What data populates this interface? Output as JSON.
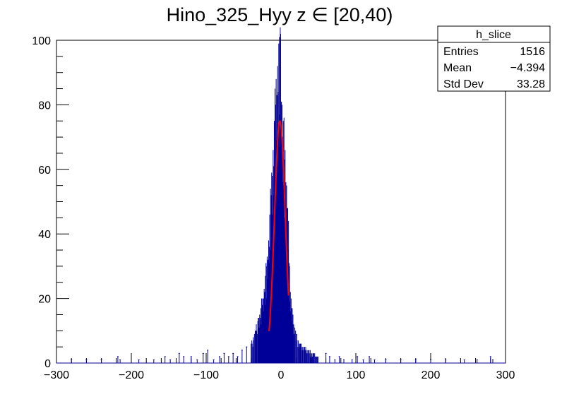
{
  "chart_data": {
    "type": "histogram",
    "title": "Hino_325_Hyy z  ∈ [20,40)",
    "xlabel": "",
    "ylabel": "",
    "xlim": [
      -300,
      300
    ],
    "ylim": [
      0,
      100
    ],
    "x_ticks": [
      "−300",
      "−200",
      "−100",
      "0",
      "100",
      "200",
      "300"
    ],
    "y_ticks": [
      "0",
      "20",
      "40",
      "60",
      "80",
      "100"
    ],
    "x_tick_values": [
      -300,
      -200,
      -100,
      0,
      100,
      200,
      300
    ],
    "y_tick_values": [
      0,
      20,
      40,
      60,
      80,
      100
    ],
    "histogram_color": "#000099",
    "fit_color": "#ff0000",
    "fit": {
      "function": "gaus",
      "constant": 75,
      "mean": -1.5,
      "sigma": 7.2,
      "range": [
        -16,
        10
      ]
    },
    "peak_points": [
      [
        -40,
        6
      ],
      [
        -36,
        8
      ],
      [
        -32,
        11
      ],
      [
        -28,
        14
      ],
      [
        -24,
        18
      ],
      [
        -20,
        25
      ],
      [
        -17,
        32
      ],
      [
        -14,
        44
      ],
      [
        -11,
        57
      ],
      [
        -8,
        70
      ],
      [
        -6,
        78
      ],
      [
        -4,
        84
      ],
      [
        -3,
        87
      ],
      [
        -2,
        83
      ],
      [
        -1,
        96
      ],
      [
        0,
        80
      ],
      [
        1,
        75
      ],
      [
        2,
        70
      ],
      [
        4,
        62
      ],
      [
        6,
        55
      ],
      [
        8,
        48
      ],
      [
        10,
        36
      ],
      [
        12,
        22
      ],
      [
        14,
        17
      ],
      [
        16,
        12
      ],
      [
        20,
        9
      ],
      [
        24,
        6
      ],
      [
        28,
        5
      ],
      [
        34,
        4
      ],
      [
        40,
        3
      ],
      [
        50,
        2
      ]
    ],
    "tail_bins": [
      [
        -280,
        1
      ],
      [
        -260,
        1
      ],
      [
        -240,
        1
      ],
      [
        -218,
        2
      ],
      [
        -215,
        1
      ],
      [
        -190,
        1
      ],
      [
        -170,
        1
      ],
      [
        -155,
        2
      ],
      [
        -148,
        1
      ],
      [
        -136,
        3
      ],
      [
        -130,
        2
      ],
      [
        -120,
        2
      ],
      [
        -112,
        1
      ],
      [
        -104,
        3
      ],
      [
        -98,
        4
      ],
      [
        -90,
        1
      ],
      [
        -82,
        2
      ],
      [
        -76,
        3
      ],
      [
        -70,
        2
      ],
      [
        -64,
        3
      ],
      [
        -58,
        2
      ],
      [
        -52,
        4
      ],
      [
        -46,
        5
      ],
      [
        60,
        3
      ],
      [
        65,
        2
      ],
      [
        72,
        1
      ],
      [
        78,
        2
      ],
      [
        84,
        1
      ],
      [
        95,
        1
      ],
      [
        102,
        2
      ],
      [
        110,
        1
      ],
      [
        118,
        2
      ],
      [
        125,
        1
      ],
      [
        140,
        1
      ],
      [
        160,
        1
      ],
      [
        180,
        1
      ],
      [
        200,
        1
      ],
      [
        220,
        1
      ],
      [
        245,
        1
      ],
      [
        262,
        1
      ],
      [
        280,
        2
      ],
      [
        283,
        1
      ]
    ]
  },
  "stats_box": {
    "title": "h_slice",
    "rows": [
      {
        "label": "Entries",
        "value": "1516"
      },
      {
        "label": "Mean",
        "value": "−4.394"
      },
      {
        "label": "Std Dev",
        "value": "33.28"
      }
    ]
  }
}
